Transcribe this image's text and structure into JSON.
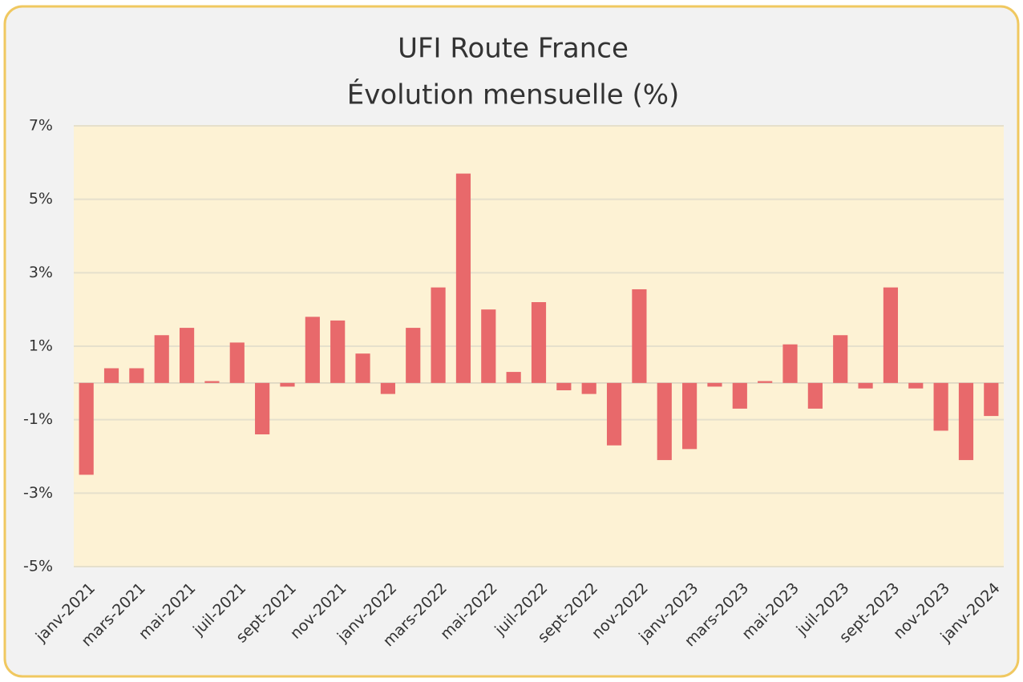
{
  "chart_data": {
    "type": "bar",
    "title": "UFI Route France",
    "subtitle": "Évolution mensuelle (%)",
    "categories": [
      "janv-2021",
      null,
      "mars-2021",
      null,
      "mai-2021",
      null,
      "juil-2021",
      null,
      "sept-2021",
      null,
      "nov-2021",
      null,
      "janv-2022",
      null,
      "mars-2022",
      null,
      "mai-2022",
      null,
      "juil-2022",
      null,
      "sept-2022",
      null,
      "nov-2022",
      null,
      "janv-2023",
      null,
      "mars-2023",
      null,
      "mai-2023",
      null,
      "juil-2023",
      null,
      "sept-2023",
      null,
      "nov-2023",
      null,
      "janv-2024"
    ],
    "values": [
      -2.5,
      0.4,
      0.4,
      1.3,
      1.5,
      0.05,
      1.1,
      -1.4,
      -0.1,
      1.8,
      1.7,
      0.8,
      -0.3,
      1.5,
      2.6,
      5.7,
      2.0,
      0.3,
      2.2,
      -0.2,
      -0.3,
      -1.7,
      2.55,
      -2.1,
      -1.8,
      -0.1,
      -0.7,
      0.05,
      1.05,
      -0.7,
      1.3,
      -0.15,
      2.6,
      -0.15,
      -1.3,
      -2.1,
      -0.9
    ],
    "color": "#e8696b",
    "ylim": [
      -5,
      7
    ],
    "yticks": [
      {
        "value": 7,
        "label": "7%"
      },
      {
        "value": 5,
        "label": "5%"
      },
      {
        "value": 3,
        "label": "3%"
      },
      {
        "value": 1,
        "label": "1%"
      },
      {
        "value": -1,
        "label": "-1%"
      },
      {
        "value": -3,
        "label": "-3%"
      },
      {
        "value": -5,
        "label": "-5%"
      }
    ],
    "grid": true
  }
}
